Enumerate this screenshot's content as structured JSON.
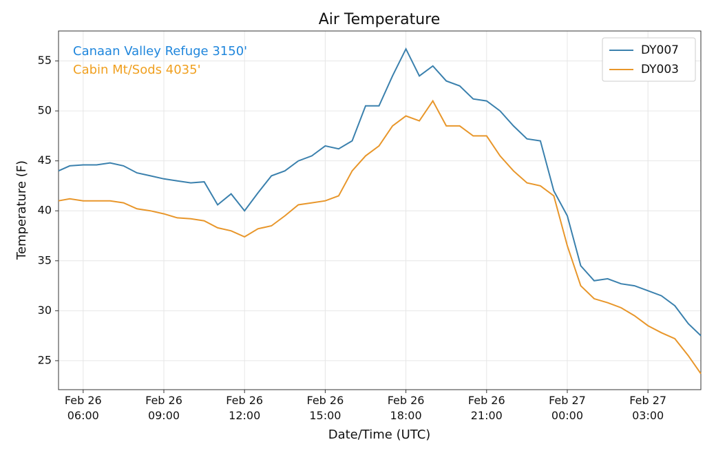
{
  "chart_data": {
    "type": "line",
    "title": "Air Temperature",
    "x_label": "Date/Time (UTC)",
    "y_label": "Temperature (F)",
    "x": [
      "Feb 26 05:05",
      "Feb 26 05:30",
      "Feb 26 06:00",
      "Feb 26 06:30",
      "Feb 26 07:00",
      "Feb 26 07:30",
      "Feb 26 08:00",
      "Feb 26 08:30",
      "Feb 26 09:00",
      "Feb 26 09:30",
      "Feb 26 10:00",
      "Feb 26 10:30",
      "Feb 26 11:00",
      "Feb 26 11:30",
      "Feb 26 12:00",
      "Feb 26 12:30",
      "Feb 26 13:00",
      "Feb 26 13:30",
      "Feb 26 14:00",
      "Feb 26 14:30",
      "Feb 26 15:00",
      "Feb 26 15:30",
      "Feb 26 16:00",
      "Feb 26 16:30",
      "Feb 26 17:00",
      "Feb 26 17:30",
      "Feb 26 18:00",
      "Feb 26 18:30",
      "Feb 26 19:00",
      "Feb 26 19:30",
      "Feb 26 20:00",
      "Feb 26 20:30",
      "Feb 26 21:00",
      "Feb 26 21:30",
      "Feb 26 22:00",
      "Feb 26 22:30",
      "Feb 26 23:00",
      "Feb 26 23:30",
      "Feb 27 00:00",
      "Feb 27 00:30",
      "Feb 27 01:00",
      "Feb 27 01:30",
      "Feb 27 02:00",
      "Feb 27 02:30",
      "Feb 27 03:00",
      "Feb 27 03:30",
      "Feb 27 04:00",
      "Feb 27 04:30",
      "Feb 27 04:58"
    ],
    "series": [
      {
        "name": "DY007",
        "color": "#3a80ad",
        "values": [
          44.0,
          44.5,
          44.6,
          44.6,
          44.8,
          44.5,
          43.8,
          43.5,
          43.2,
          43.0,
          42.8,
          42.9,
          40.6,
          41.7,
          40.0,
          41.8,
          43.5,
          44.0,
          45.0,
          45.5,
          46.5,
          46.2,
          47.0,
          50.5,
          50.5,
          53.5,
          56.2,
          53.5,
          54.5,
          53.0,
          52.5,
          51.2,
          51.0,
          50.0,
          48.5,
          47.2,
          47.0,
          42.0,
          39.5,
          34.5,
          33.0,
          33.2,
          32.7,
          32.5,
          32.0,
          31.5,
          30.5,
          28.7,
          27.5
        ]
      },
      {
        "name": "DY003",
        "color": "#e8962a",
        "values": [
          41.0,
          41.2,
          41.0,
          41.0,
          41.0,
          40.8,
          40.2,
          40.0,
          39.7,
          39.3,
          39.2,
          39.0,
          38.3,
          38.0,
          37.4,
          38.2,
          38.5,
          39.5,
          40.6,
          40.8,
          41.0,
          41.5,
          44.0,
          45.5,
          46.5,
          48.5,
          49.5,
          49.0,
          51.0,
          48.5,
          48.5,
          47.5,
          47.5,
          45.5,
          44.0,
          42.8,
          42.5,
          41.5,
          36.5,
          32.5,
          31.2,
          30.8,
          30.3,
          29.5,
          28.5,
          27.8,
          27.2,
          25.5,
          23.7
        ]
      }
    ],
    "annotations": [
      {
        "text": "Canaan Valley Refuge 3150'",
        "color": "#1f86dc"
      },
      {
        "text": "Cabin Mt/Sods 4035'",
        "color": "#f0a020"
      }
    ],
    "xlim": [
      "Feb 26 05:05",
      "Feb 27 04:58"
    ],
    "xticks": [
      "Feb 26 06:00",
      "Feb 26 09:00",
      "Feb 26 12:00",
      "Feb 26 15:00",
      "Feb 26 18:00",
      "Feb 26 21:00",
      "Feb 27 00:00",
      "Feb 27 03:00"
    ],
    "ylim": [
      22.1,
      58
    ],
    "yticks": [
      25,
      30,
      35,
      40,
      45,
      50,
      55
    ],
    "grid": true,
    "legend": "upper right"
  }
}
